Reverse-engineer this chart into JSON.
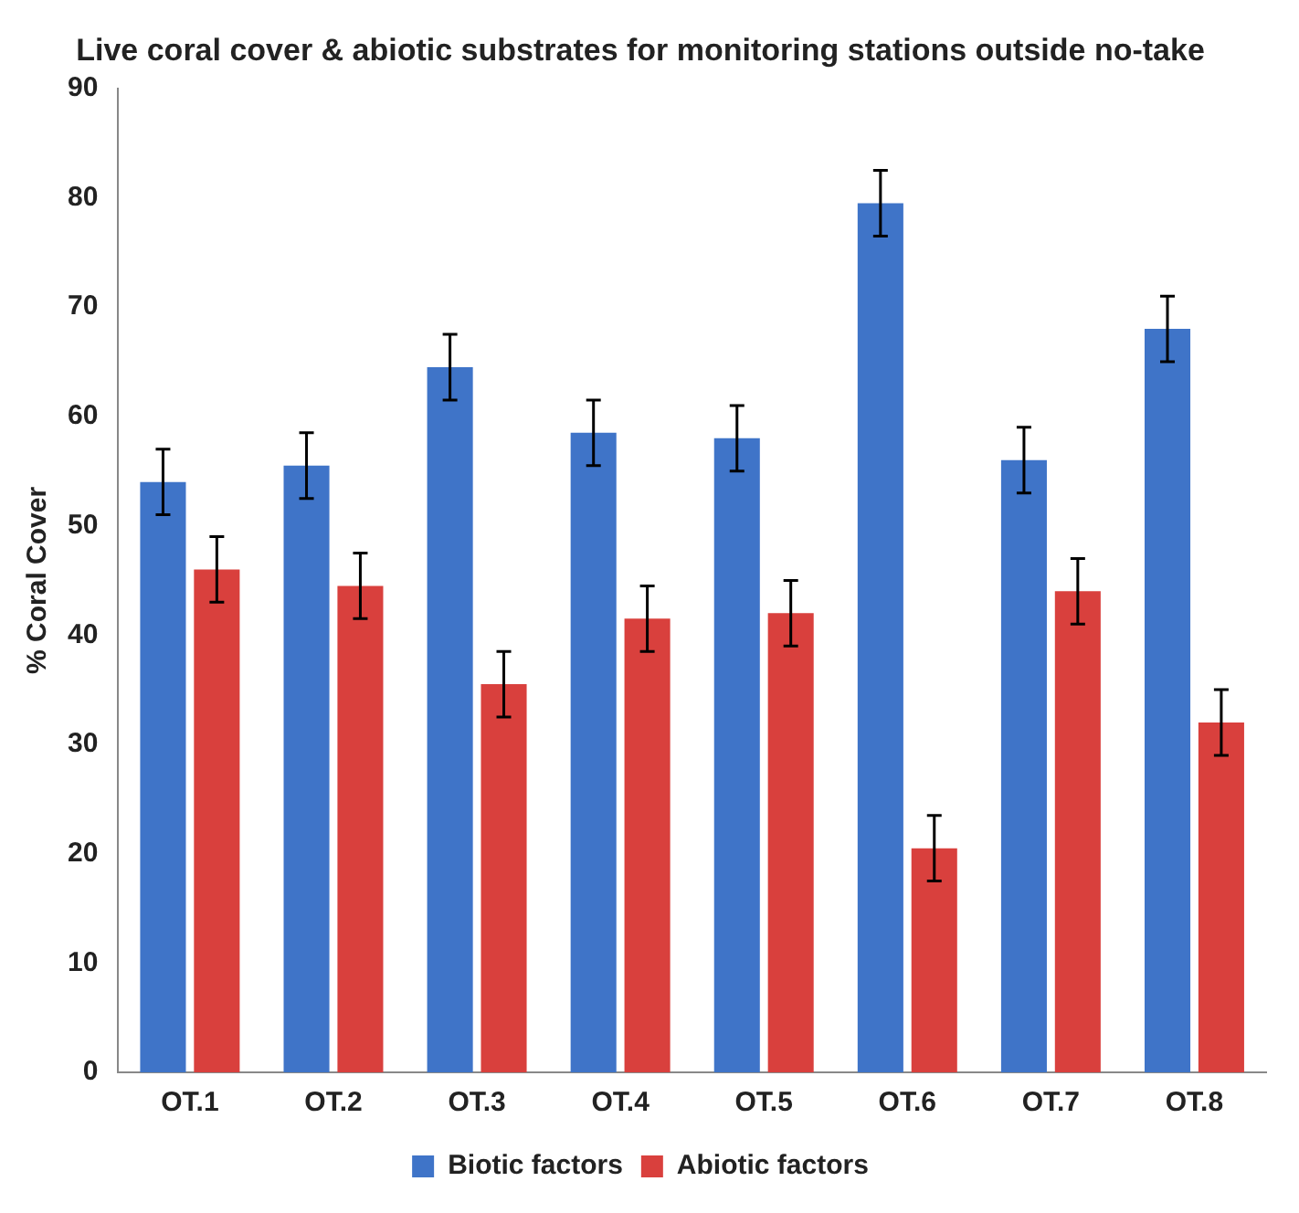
{
  "chart_data": {
    "type": "bar",
    "title": "Live coral cover & abiotic substrates for monitoring stations outside no-take",
    "ylabel": "% Coral Cover",
    "categories": [
      "OT.1",
      "OT.2",
      "OT.3",
      "OT.4",
      "OT.5",
      "OT.6",
      "OT.7",
      "OT.8"
    ],
    "series": [
      {
        "name": "Biotic factors",
        "color": "#3f74c8",
        "values": [
          54,
          55.5,
          64.5,
          58.5,
          58,
          79.5,
          56,
          68
        ],
        "errors": [
          3,
          3,
          3,
          3,
          3,
          3,
          3,
          3
        ]
      },
      {
        "name": "Abiotic factors",
        "color": "#d9403d",
        "values": [
          46,
          44.5,
          35.5,
          41.5,
          42,
          20.5,
          44,
          32
        ],
        "errors": [
          3,
          3,
          3,
          3,
          3,
          3,
          3,
          3
        ]
      }
    ],
    "ylim": [
      0,
      90
    ],
    "yticks": [
      0,
      10,
      20,
      30,
      40,
      50,
      60,
      70,
      80,
      90
    ],
    "grid": false,
    "legend": "bottom"
  }
}
